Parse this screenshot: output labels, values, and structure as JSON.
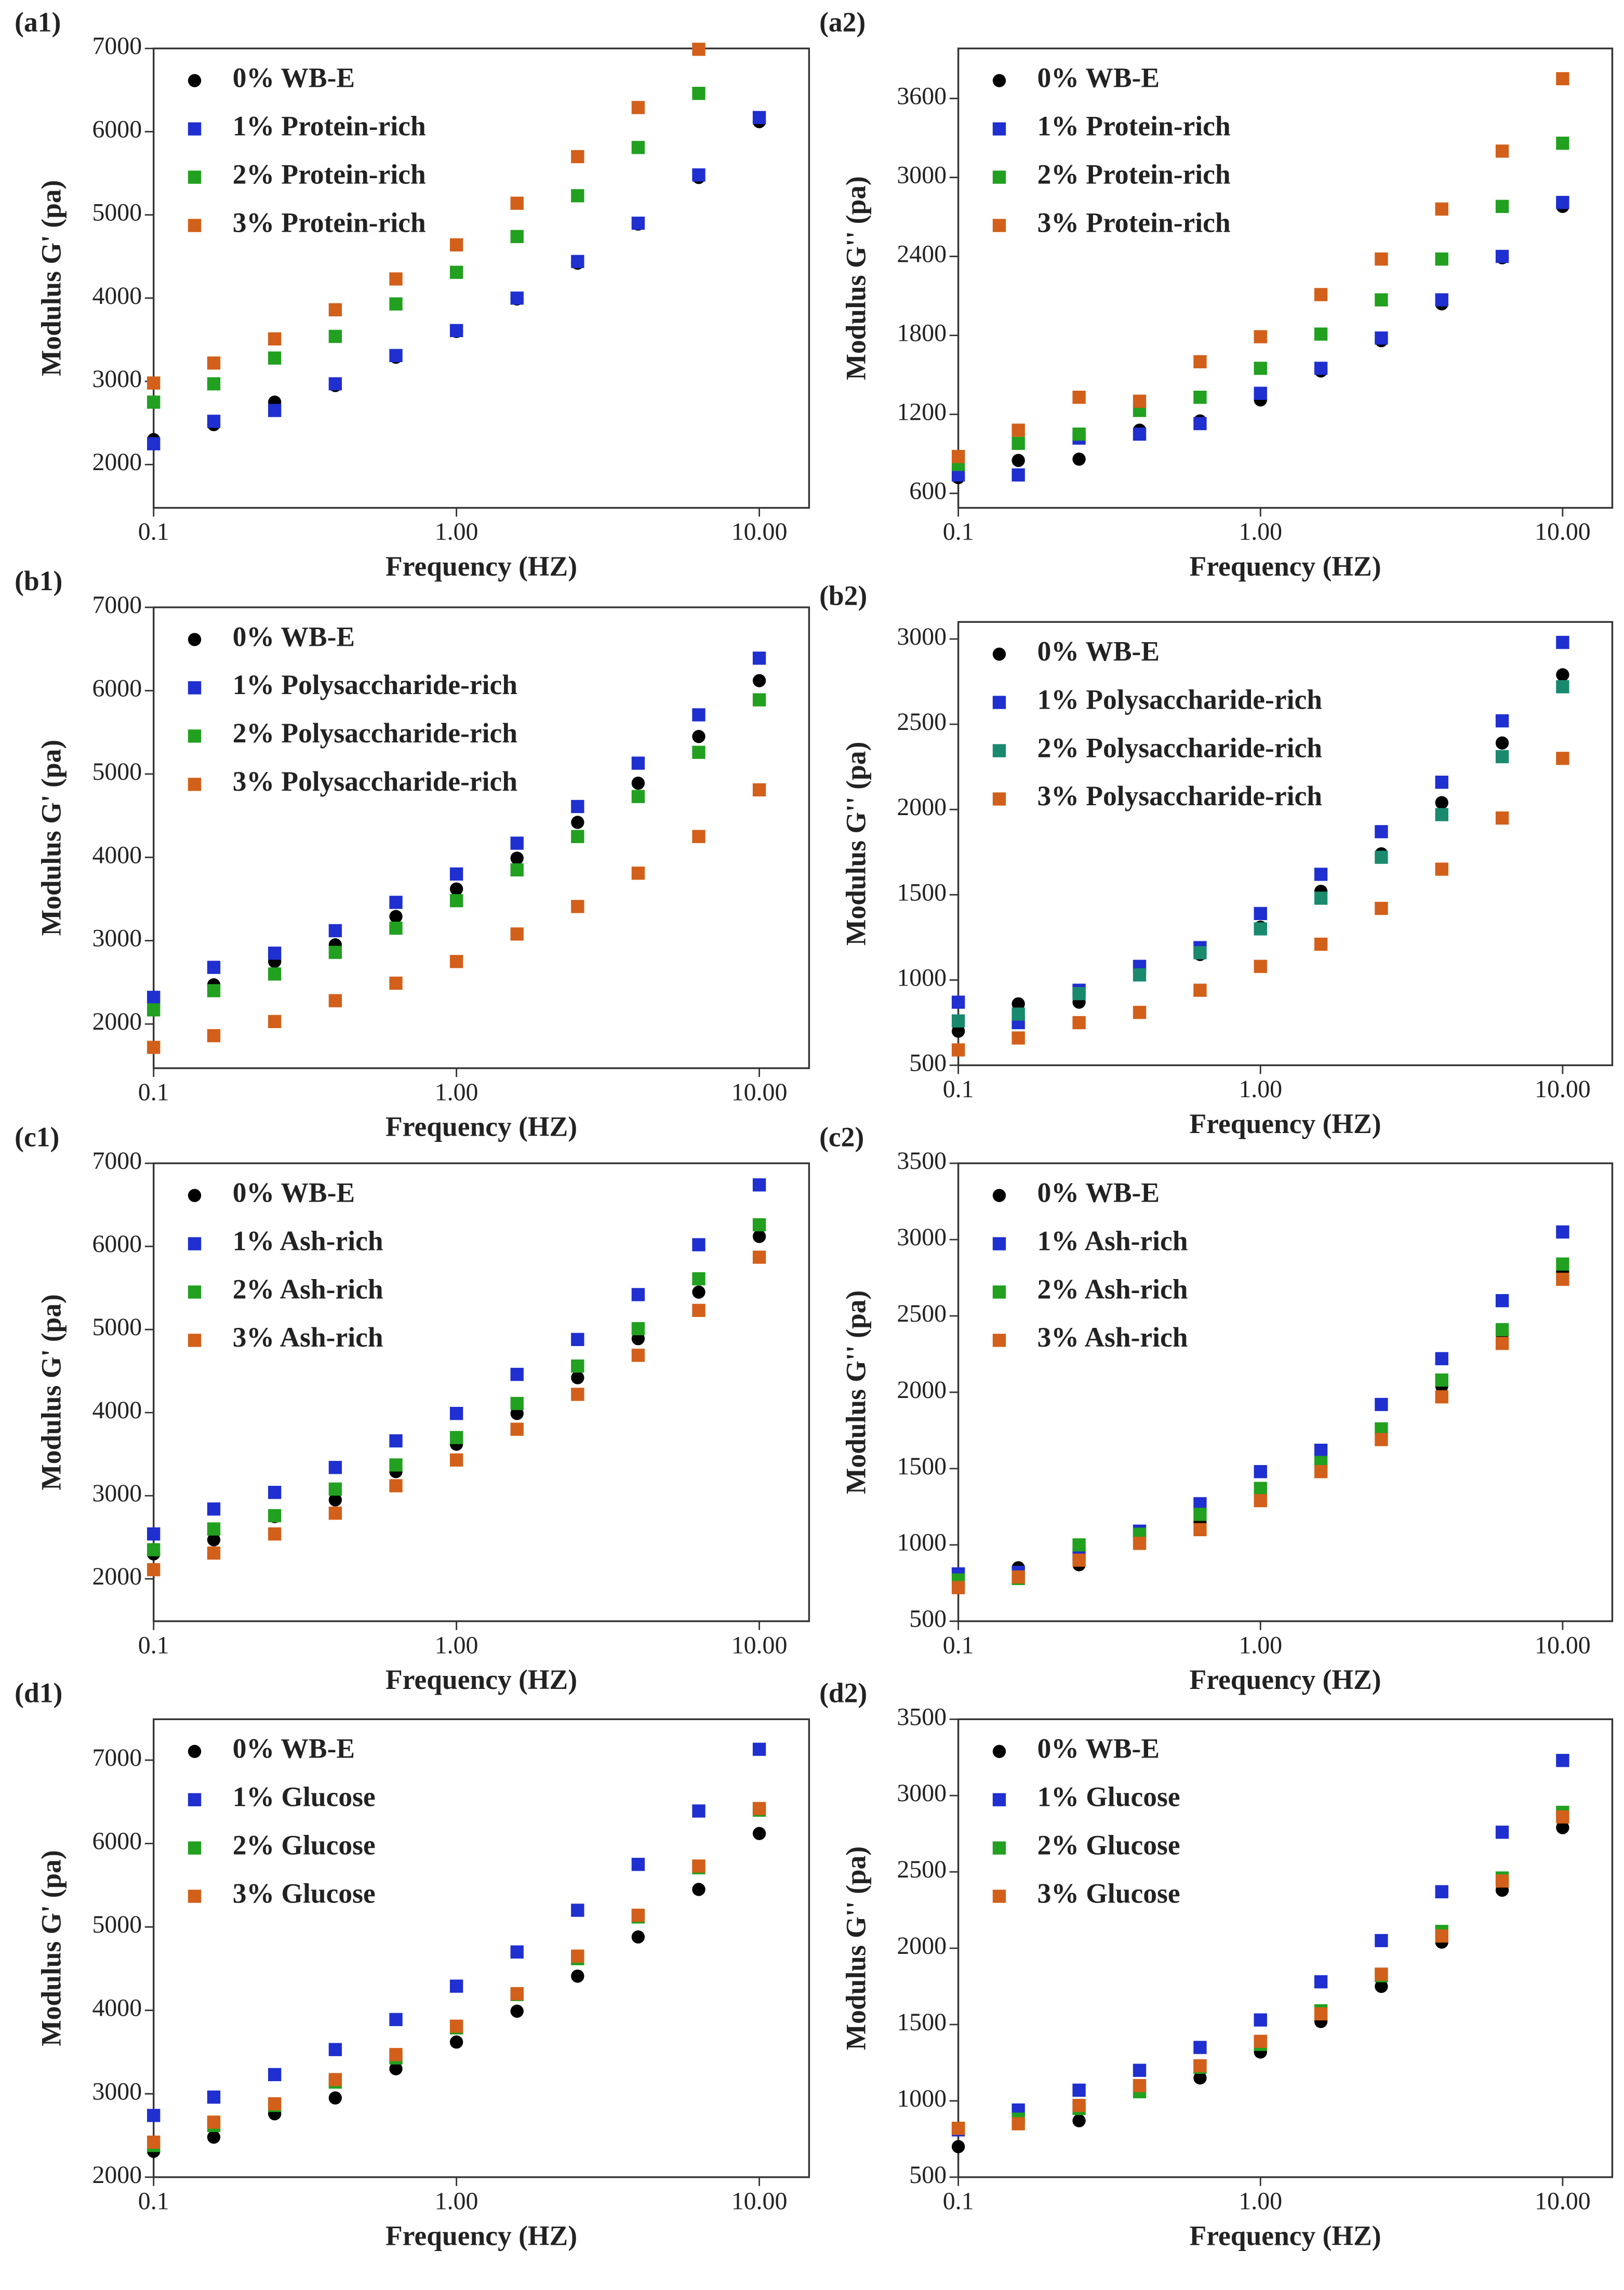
{
  "chart_data": [
    {
      "type": "scatter",
      "label": "(a1)",
      "xlabel": "Frequency (HZ)",
      "ylabel": "Modulus G' (pa)",
      "log_x": true,
      "legend": "upper left",
      "x": [
        0.1,
        0.158,
        0.251,
        0.398,
        0.631,
        1,
        1.585,
        2.512,
        3.981,
        6.31,
        10
      ],
      "xlim": [
        0.1,
        14.6
      ],
      "xticks": [
        0.1,
        {
          "value": 1,
          "label": "1.00"
        },
        {
          "value": 10,
          "label": "10.00"
        }
      ],
      "ylim": [
        1480,
        7000
      ],
      "yticks": [
        2000,
        3000,
        4000,
        5000,
        6000,
        7000
      ],
      "series": [
        {
          "name": "0% WB-E",
          "color": "#000000",
          "marker": "circle",
          "values": [
            2300,
            2480,
            2750,
            2950,
            3290,
            3600,
            3990,
            4420,
            4890,
            5450,
            6120
          ]
        },
        {
          "name": "1% Protein-rich",
          "color": "#1f2fd0",
          "marker": "square",
          "values": [
            2250,
            2520,
            2650,
            2970,
            3310,
            3610,
            4000,
            4440,
            4900,
            5480,
            6170
          ]
        },
        {
          "name": "2% Protein-rich",
          "color": "#22a020",
          "marker": "square",
          "values": [
            2750,
            2970,
            3280,
            3540,
            3930,
            4310,
            4740,
            5230,
            5810,
            6460,
            null
          ]
        },
        {
          "name": "3% Protein-rich",
          "color": "#d2601a",
          "marker": "square",
          "values": [
            2980,
            3220,
            3510,
            3860,
            4230,
            4640,
            5140,
            5700,
            6290,
            6990,
            null
          ]
        }
      ]
    },
    {
      "type": "scatter",
      "label": "(a2)",
      "xlabel": "Frequency (HZ)",
      "ylabel": "Modulus G'' (pa)",
      "log_x": true,
      "legend": "upper left",
      "x": [
        0.1,
        0.158,
        0.251,
        0.398,
        0.631,
        1,
        1.585,
        2.512,
        3.981,
        6.31,
        10
      ],
      "xlim": [
        0.1,
        14.6
      ],
      "xticks": [
        0.1,
        {
          "value": 1,
          "label": "1.00"
        },
        {
          "value": 10,
          "label": "10.00"
        }
      ],
      "ylim": [
        490,
        3980
      ],
      "yticks": [
        600,
        1200,
        1800,
        2400,
        3000,
        3600
      ],
      "series": [
        {
          "name": "0% WB-E",
          "color": "#000000",
          "marker": "circle",
          "values": [
            720,
            850,
            860,
            1080,
            1150,
            1310,
            1530,
            1760,
            2040,
            2390,
            2780
          ]
        },
        {
          "name": "1% Protein-rich",
          "color": "#1f2fd0",
          "marker": "square",
          "values": [
            740,
            740,
            1020,
            1050,
            1130,
            1360,
            1550,
            1780,
            2070,
            2400,
            2810
          ]
        },
        {
          "name": "2% Protein-rich",
          "color": "#22a020",
          "marker": "square",
          "values": [
            820,
            980,
            1050,
            1230,
            1330,
            1550,
            1810,
            2070,
            2380,
            2780,
            3260
          ]
        },
        {
          "name": "3% Protein-rich",
          "color": "#d2601a",
          "marker": "square",
          "values": [
            880,
            1080,
            1330,
            1300,
            1600,
            1790,
            2110,
            2380,
            2760,
            3200,
            3750
          ]
        }
      ]
    },
    {
      "type": "scatter",
      "label": "(b1)",
      "xlabel": "Frequency (HZ)",
      "ylabel": "Modulus G' (pa)",
      "log_x": true,
      "legend": "upper left",
      "x": [
        0.1,
        0.158,
        0.251,
        0.398,
        0.631,
        1,
        1.585,
        2.512,
        3.981,
        6.31,
        10
      ],
      "xlim": [
        0.1,
        14.6
      ],
      "xticks": [
        0.1,
        {
          "value": 1,
          "label": "1.00"
        },
        {
          "value": 10,
          "label": "10.00"
        }
      ],
      "ylim": [
        1470,
        7000
      ],
      "yticks": [
        2000,
        3000,
        4000,
        5000,
        6000,
        7000
      ],
      "series": [
        {
          "name": "0% WB-E",
          "color": "#000000",
          "marker": "circle",
          "values": [
            2300,
            2470,
            2750,
            2950,
            3290,
            3620,
            3990,
            4420,
            4890,
            5450,
            6120
          ]
        },
        {
          "name": "1% Polysaccharide-rich",
          "color": "#1f2fd0",
          "marker": "square",
          "values": [
            2320,
            2680,
            2850,
            3120,
            3460,
            3800,
            4170,
            4610,
            5130,
            5710,
            6390
          ]
        },
        {
          "name": "2% Polysaccharide-rich",
          "color": "#22a020",
          "marker": "square",
          "values": [
            2170,
            2400,
            2600,
            2860,
            3150,
            3480,
            3850,
            4250,
            4730,
            5260,
            5890
          ]
        },
        {
          "name": "3% Polysaccharide-rich",
          "color": "#d2601a",
          "marker": "square",
          "values": [
            1720,
            1860,
            2030,
            2280,
            2490,
            2750,
            3080,
            3410,
            3810,
            4250,
            4810
          ]
        }
      ]
    },
    {
      "type": "scatter",
      "label": "(b2)",
      "xlabel": "Frequency (HZ)",
      "ylabel": "Modulus G'' (pa)",
      "log_x": true,
      "legend": "upper left",
      "x": [
        0.1,
        0.158,
        0.251,
        0.398,
        0.631,
        1,
        1.585,
        2.512,
        3.981,
        6.31,
        10
      ],
      "xlim": [
        0.1,
        14.6
      ],
      "xticks": [
        0.1,
        {
          "value": 1,
          "label": "1.00"
        },
        {
          "value": 10,
          "label": "10.00"
        }
      ],
      "ylim": [
        500,
        3100
      ],
      "yticks": [
        500,
        1000,
        1500,
        2000,
        2500,
        3000
      ],
      "series": [
        {
          "name": "0% WB-E",
          "color": "#000000",
          "marker": "circle",
          "values": [
            700,
            860,
            870,
            1060,
            1150,
            1310,
            1520,
            1740,
            2040,
            2390,
            2790
          ]
        },
        {
          "name": "1% Polysaccharide-rich",
          "color": "#1f2fd0",
          "marker": "square",
          "values": [
            870,
            750,
            940,
            1080,
            1190,
            1390,
            1620,
            1870,
            2160,
            2520,
            2980
          ]
        },
        {
          "name": "2% Polysaccharide-rich",
          "color": "#1a8a6e",
          "marker": "square",
          "values": [
            760,
            800,
            920,
            1030,
            1160,
            1300,
            1480,
            1720,
            1970,
            2310,
            2720
          ]
        },
        {
          "name": "3% Polysaccharide-rich",
          "color": "#d2601a",
          "marker": "square",
          "values": [
            590,
            660,
            750,
            810,
            940,
            1080,
            1210,
            1420,
            1650,
            1950,
            2300
          ]
        }
      ]
    },
    {
      "type": "scatter",
      "label": "(c1)",
      "xlabel": "Frequency (HZ)",
      "ylabel": "Modulus G' (pa)",
      "log_x": true,
      "legend": "upper left",
      "x": [
        0.1,
        0.158,
        0.251,
        0.398,
        0.631,
        1,
        1.585,
        2.512,
        3.981,
        6.31,
        10
      ],
      "xlim": [
        0.1,
        14.6
      ],
      "xticks": [
        0.1,
        {
          "value": 1,
          "label": "1.00"
        },
        {
          "value": 10,
          "label": "10.00"
        }
      ],
      "ylim": [
        1490,
        7000
      ],
      "yticks": [
        2000,
        3000,
        4000,
        5000,
        6000,
        7000
      ],
      "series": [
        {
          "name": "0% WB-E",
          "color": "#000000",
          "marker": "circle",
          "values": [
            2300,
            2470,
            2750,
            2950,
            3290,
            3620,
            3990,
            4420,
            4890,
            5450,
            6120
          ]
        },
        {
          "name": "1% Ash-rich",
          "color": "#1f2fd0",
          "marker": "square",
          "values": [
            2540,
            2840,
            3040,
            3340,
            3660,
            3990,
            4460,
            4880,
            5420,
            6020,
            6740
          ]
        },
        {
          "name": "2% Ash-rich",
          "color": "#22a020",
          "marker": "square",
          "values": [
            2350,
            2600,
            2760,
            3080,
            3370,
            3700,
            4110,
            4560,
            5010,
            5610,
            6260
          ]
        },
        {
          "name": "3% Ash-rich",
          "color": "#d2601a",
          "marker": "square",
          "values": [
            2110,
            2310,
            2540,
            2790,
            3120,
            3430,
            3800,
            4220,
            4690,
            5230,
            5870
          ]
        }
      ]
    },
    {
      "type": "scatter",
      "label": "(c2)",
      "xlabel": "Frequency (HZ)",
      "ylabel": "Modulus G'' (pa)",
      "log_x": true,
      "legend": "upper left",
      "x": [
        0.1,
        0.158,
        0.251,
        0.398,
        0.631,
        1,
        1.585,
        2.512,
        3.981,
        6.31,
        10
      ],
      "xlim": [
        0.1,
        14.6
      ],
      "xticks": [
        0.1,
        {
          "value": 1,
          "label": "1.00"
        },
        {
          "value": 10,
          "label": "10.00"
        }
      ],
      "ylim": [
        500,
        3500
      ],
      "yticks": [
        500,
        1000,
        1500,
        2000,
        2500,
        3000,
        3500
      ],
      "series": [
        {
          "name": "0% WB-E",
          "color": "#000000",
          "marker": "circle",
          "values": [
            720,
            850,
            870,
            1060,
            1150,
            1320,
            1520,
            1740,
            2040,
            2380,
            2790
          ]
        },
        {
          "name": "1% Ash-rich",
          "color": "#1f2fd0",
          "marker": "square",
          "values": [
            810,
            820,
            940,
            1090,
            1270,
            1480,
            1620,
            1920,
            2220,
            2600,
            3050
          ]
        },
        {
          "name": "2% Ash-rich",
          "color": "#22a020",
          "marker": "square",
          "values": [
            770,
            780,
            1000,
            1070,
            1200,
            1370,
            1540,
            1760,
            2080,
            2410,
            2840
          ]
        },
        {
          "name": "3% Ash-rich",
          "color": "#d2601a",
          "marker": "square",
          "values": [
            720,
            790,
            900,
            1010,
            1100,
            1290,
            1480,
            1690,
            1970,
            2320,
            2740
          ]
        }
      ]
    },
    {
      "type": "scatter",
      "label": "(d1)",
      "xlabel": "Frequency (HZ)",
      "ylabel": "Modulus G' (pa)",
      "log_x": true,
      "legend": "upper left",
      "x": [
        0.1,
        0.158,
        0.251,
        0.398,
        0.631,
        1,
        1.585,
        2.512,
        3.981,
        6.31,
        10
      ],
      "xlim": [
        0.1,
        14.6
      ],
      "xticks": [
        0.1,
        {
          "value": 1,
          "label": "1.00"
        },
        {
          "value": 10,
          "label": "10.00"
        }
      ],
      "ylim": [
        2000,
        7490
      ],
      "yticks": [
        2000,
        3000,
        4000,
        5000,
        6000,
        7000
      ],
      "series": [
        {
          "name": "0% WB-E",
          "color": "#000000",
          "marker": "circle",
          "values": [
            2310,
            2480,
            2760,
            2950,
            3300,
            3620,
            3990,
            4410,
            4880,
            5450,
            6120
          ]
        },
        {
          "name": "1% Glucose",
          "color": "#1f2fd0",
          "marker": "square",
          "values": [
            2740,
            2960,
            3230,
            3530,
            3890,
            4290,
            4700,
            5200,
            5750,
            6390,
            7130
          ]
        },
        {
          "name": "2% Glucose",
          "color": "#22a020",
          "marker": "square",
          "values": [
            2380,
            2620,
            2860,
            3140,
            3430,
            3790,
            4190,
            4620,
            5120,
            5710,
            6400
          ]
        },
        {
          "name": "3% Glucose",
          "color": "#d2601a",
          "marker": "square",
          "values": [
            2420,
            2660,
            2880,
            3170,
            3470,
            3810,
            4200,
            4650,
            5140,
            5730,
            6420
          ]
        }
      ]
    },
    {
      "type": "scatter",
      "label": "(d2)",
      "xlabel": "Frequency (HZ)",
      "ylabel": "Modulus G'' (pa)",
      "log_x": true,
      "legend": "upper left",
      "x": [
        0.1,
        0.158,
        0.251,
        0.398,
        0.631,
        1,
        1.585,
        2.512,
        3.981,
        6.31,
        10
      ],
      "xlim": [
        0.1,
        14.6
      ],
      "xticks": [
        0.1,
        {
          "value": 1,
          "label": "1.00"
        },
        {
          "value": 10,
          "label": "10.00"
        }
      ],
      "ylim": [
        500,
        3500
      ],
      "yticks": [
        500,
        1000,
        1500,
        2000,
        2500,
        3000,
        3500
      ],
      "series": [
        {
          "name": "0% WB-E",
          "color": "#000000",
          "marker": "circle",
          "values": [
            700,
            870,
            870,
            1060,
            1150,
            1320,
            1520,
            1750,
            2040,
            2380,
            2790
          ]
        },
        {
          "name": "1% Glucose",
          "color": "#1f2fd0",
          "marker": "square",
          "values": [
            810,
            940,
            1070,
            1200,
            1350,
            1530,
            1780,
            2050,
            2370,
            2760,
            3230
          ]
        },
        {
          "name": "2% Glucose",
          "color": "#22a020",
          "marker": "square",
          "values": [
            820,
            880,
            950,
            1060,
            1220,
            1370,
            1590,
            1820,
            2110,
            2460,
            2890
          ]
        },
        {
          "name": "3% Glucose",
          "color": "#d2601a",
          "marker": "square",
          "values": [
            820,
            850,
            970,
            1100,
            1230,
            1390,
            1570,
            1830,
            2080,
            2440,
            2860
          ]
        }
      ]
    }
  ]
}
